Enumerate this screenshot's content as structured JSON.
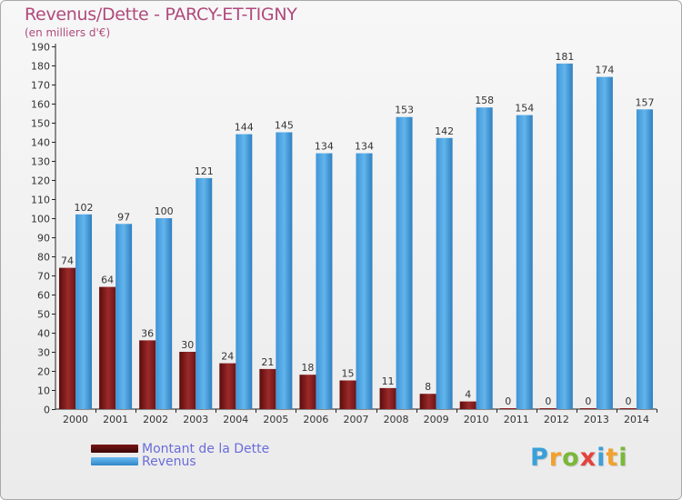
{
  "header": {
    "title": "Revenus/Dette - PARCY-ET-TIGNY",
    "subtitle": "(en milliers d'€)"
  },
  "chart_data": {
    "type": "bar",
    "title": "Revenus/Dette - PARCY-ET-TIGNY",
    "ylabel": "(en milliers d'€)",
    "xlabel": "",
    "ylim": [
      0,
      190
    ],
    "ytick_step": 10,
    "grid": false,
    "legend_position": "bottom-left",
    "categories": [
      "2000",
      "2001",
      "2002",
      "2003",
      "2004",
      "2005",
      "2006",
      "2007",
      "2008",
      "2009",
      "2010",
      "2011",
      "2012",
      "2013",
      "2014"
    ],
    "series": [
      {
        "name": "Montant de la Dette",
        "color": "#8b1d1d",
        "values": [
          74,
          64,
          36,
          30,
          24,
          21,
          18,
          15,
          11,
          8,
          4,
          0,
          0,
          0,
          0
        ]
      },
      {
        "name": "Revenus",
        "color": "#4da6e8",
        "values": [
          102,
          97,
          100,
          121,
          144,
          145,
          134,
          134,
          153,
          142,
          158,
          154,
          181,
          174,
          157
        ]
      }
    ]
  },
  "legend": {
    "items": [
      {
        "label": "Montant de la Dette"
      },
      {
        "label": "Revenus"
      }
    ]
  },
  "logo": {
    "letters": [
      "P",
      "r",
      "o",
      "x",
      "i",
      "t",
      "i"
    ]
  }
}
